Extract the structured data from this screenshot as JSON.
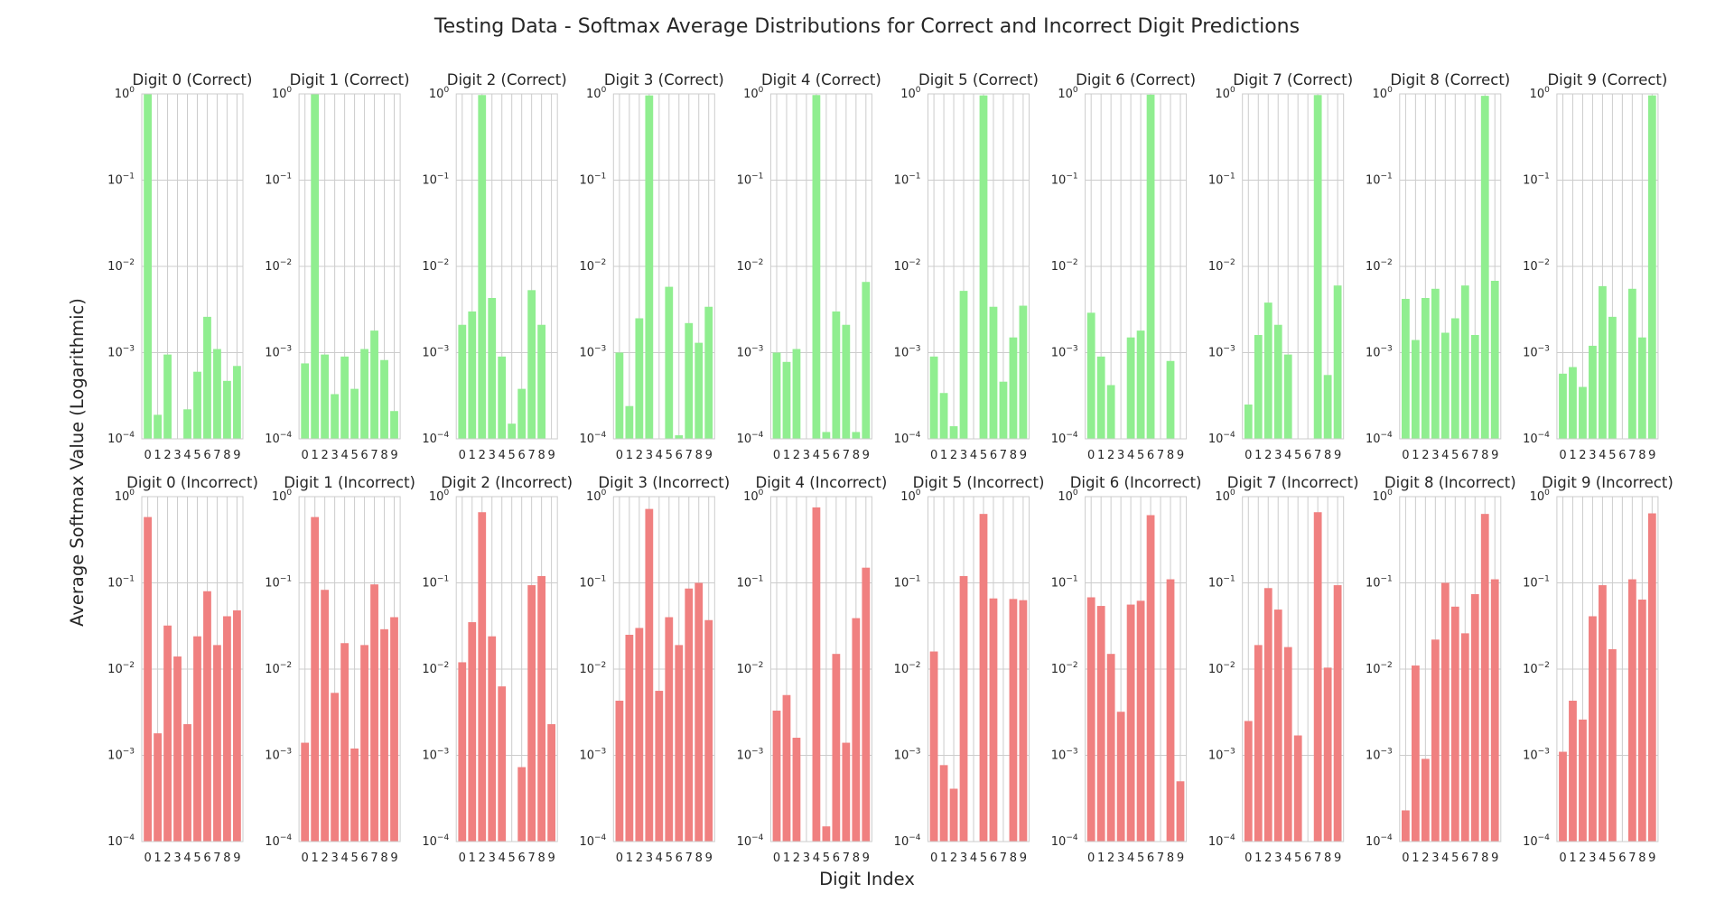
{
  "figure": {
    "title": "Testing Data - Softmax Average Distributions for Correct and Incorrect Digit Predictions",
    "xlabel": "Digit Index",
    "ylabel": "Average Softmax Value (Logarithmic)"
  },
  "colors": {
    "correct": "#90ee90",
    "incorrect": "#f08080"
  },
  "chart_data": {
    "type": "bar",
    "yscale": "log",
    "ylim": [
      0.0001,
      1
    ],
    "grid": true,
    "categories": [
      "0",
      "1",
      "2",
      "3",
      "4",
      "5",
      "6",
      "7",
      "8",
      "9"
    ],
    "correct": [
      {
        "title": "Digit 0 (Correct)",
        "values": [
          0.99,
          0.00019,
          0.00095,
          8e-05,
          0.00022,
          0.0006,
          0.0026,
          0.0011,
          0.00047,
          0.0007
        ]
      },
      {
        "title": "Digit 1 (Correct)",
        "values": [
          0.00075,
          0.99,
          0.00095,
          0.00033,
          0.0009,
          0.00038,
          0.0011,
          0.0018,
          0.00082,
          0.00021
        ]
      },
      {
        "title": "Digit 2 (Correct)",
        "values": [
          0.0021,
          0.003,
          0.97,
          0.0043,
          0.0009,
          0.00015,
          0.00038,
          0.0053,
          0.0021,
          5e-05
        ]
      },
      {
        "title": "Digit 3 (Correct)",
        "values": [
          0.001,
          0.00024,
          0.0025,
          0.96,
          5e-05,
          0.0058,
          0.00011,
          0.0022,
          0.0013,
          0.0034
        ]
      },
      {
        "title": "Digit 4 (Correct)",
        "values": [
          0.001,
          0.00078,
          0.0011,
          5e-05,
          0.97,
          0.00012,
          0.003,
          0.0021,
          0.00012,
          0.0066
        ]
      },
      {
        "title": "Digit 5 (Correct)",
        "values": [
          0.0009,
          0.00034,
          0.00014,
          0.0052,
          5e-05,
          0.96,
          0.0034,
          0.00046,
          0.0015,
          0.0035
        ]
      },
      {
        "title": "Digit 6 (Correct)",
        "values": [
          0.0029,
          0.0009,
          0.00042,
          5e-05,
          0.0015,
          0.0018,
          0.98,
          5e-05,
          0.0008,
          5e-05
        ]
      },
      {
        "title": "Digit 7 (Correct)",
        "values": [
          0.00025,
          0.0016,
          0.0038,
          0.0021,
          0.00095,
          5e-05,
          5e-05,
          0.97,
          0.00055,
          0.006
        ]
      },
      {
        "title": "Digit 8 (Correct)",
        "values": [
          0.0042,
          0.0014,
          0.0043,
          0.0055,
          0.0017,
          0.0025,
          0.006,
          0.0016,
          0.95,
          0.0068
        ]
      },
      {
        "title": "Digit 9 (Correct)",
        "values": [
          0.00057,
          0.00068,
          0.0004,
          0.0012,
          0.0059,
          0.0026,
          5e-05,
          0.0055,
          0.0015,
          0.96
        ]
      }
    ],
    "incorrect": [
      {
        "title": "Digit 0 (Incorrect)",
        "values": [
          0.58,
          0.0018,
          0.032,
          0.014,
          0.0023,
          0.024,
          0.08,
          0.019,
          0.041,
          0.048
        ]
      },
      {
        "title": "Digit 1 (Incorrect)",
        "values": [
          0.0014,
          0.58,
          0.083,
          0.0053,
          0.02,
          0.0012,
          0.019,
          0.096,
          0.029,
          0.04
        ]
      },
      {
        "title": "Digit 2 (Incorrect)",
        "values": [
          0.012,
          0.035,
          0.66,
          0.024,
          0.0063,
          5e-05,
          0.00073,
          0.094,
          0.12,
          0.0023
        ]
      },
      {
        "title": "Digit 3 (Incorrect)",
        "values": [
          0.0043,
          0.025,
          0.03,
          0.72,
          0.0056,
          0.04,
          0.019,
          0.086,
          0.1,
          0.037
        ]
      },
      {
        "title": "Digit 4 (Incorrect)",
        "values": [
          0.0033,
          0.005,
          0.0016,
          5e-05,
          0.75,
          0.00015,
          0.015,
          0.0014,
          0.039,
          0.15
        ]
      },
      {
        "title": "Digit 5 (Incorrect)",
        "values": [
          0.016,
          0.00077,
          0.00041,
          0.12,
          5e-05,
          0.63,
          0.066,
          5e-05,
          0.065,
          0.063
        ]
      },
      {
        "title": "Digit 6 (Incorrect)",
        "values": [
          0.068,
          0.054,
          0.015,
          0.0032,
          0.056,
          0.062,
          0.61,
          5e-05,
          0.11,
          0.0005
        ]
      },
      {
        "title": "Digit 7 (Incorrect)",
        "values": [
          0.0025,
          0.019,
          0.087,
          0.049,
          0.018,
          0.0017,
          5e-05,
          0.66,
          0.0104,
          0.094
        ]
      },
      {
        "title": "Digit 8 (Incorrect)",
        "values": [
          0.00023,
          0.011,
          0.00091,
          0.022,
          0.1,
          0.053,
          0.026,
          0.074,
          0.63,
          0.11
        ]
      },
      {
        "title": "Digit 9 (Incorrect)",
        "values": [
          0.0011,
          0.0043,
          0.0026,
          0.041,
          0.094,
          0.017,
          5e-05,
          0.11,
          0.064,
          0.64
        ]
      }
    ]
  }
}
